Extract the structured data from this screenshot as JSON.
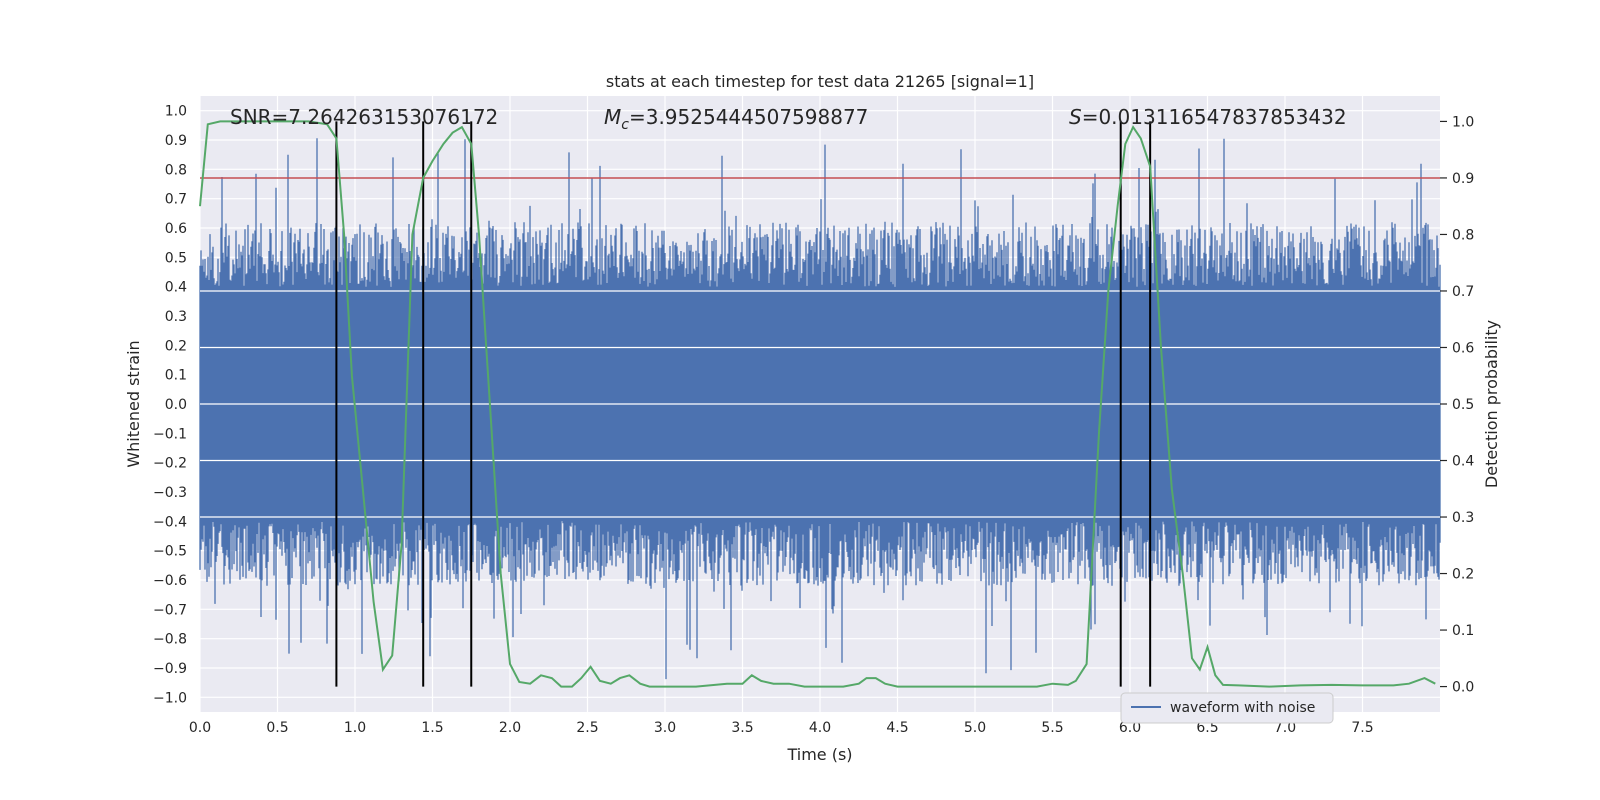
{
  "chart_data": {
    "type": "line",
    "title": "stats at each timestep for test data 21265 [signal=1]",
    "xlabel": "Time (s)",
    "ylabel": "Whitened strain",
    "y2label": "Detection probability",
    "xlim": [
      0.0,
      8.0
    ],
    "ylim": [
      -1.05,
      1.05
    ],
    "y2lim": [
      -0.045,
      1.045
    ],
    "x_ticks": [
      "0.0",
      "0.5",
      "1.0",
      "1.5",
      "2.0",
      "2.5",
      "3.0",
      "3.5",
      "4.0",
      "4.5",
      "5.0",
      "5.5",
      "6.0",
      "6.5",
      "7.0",
      "7.5"
    ],
    "y_ticks": [
      "1.0",
      "0.9",
      "0.8",
      "0.7",
      "0.6",
      "0.5",
      "0.4",
      "0.3",
      "0.2",
      "0.1",
      "0.0",
      "−0.1",
      "−0.2",
      "−0.3",
      "−0.4",
      "−0.5",
      "−0.6",
      "−0.7",
      "−0.8",
      "−0.9",
      "−1.0"
    ],
    "y2_ticks": [
      "1.0",
      "0.9",
      "0.8",
      "0.7",
      "0.6",
      "0.5",
      "0.4",
      "0.3",
      "0.2",
      "0.1",
      "0.0"
    ],
    "annotations": {
      "snr": "SNR=7.264263153076172",
      "mc_symbol": "M",
      "mc_sub": "c",
      "mc_value": "=3.9525444507598877",
      "s_symbol": "S",
      "s_value": "=0.013116547837853432"
    },
    "threshold": {
      "y2": 0.9,
      "color": "#c44e52"
    },
    "vertical_lines_x": [
      0.88,
      1.44,
      1.75,
      5.94,
      6.13
    ],
    "legend": {
      "label": "waveform with noise",
      "placement": "lower-right"
    },
    "series": [
      {
        "name": "waveform with noise",
        "axis": "left",
        "color": "#4c72b0",
        "band_core": 0.4,
        "band_typical": 0.62,
        "peak_max": 0.97,
        "trough_min": -0.95
      },
      {
        "axis": "right",
        "color": "#55a868",
        "x": [
          0.0,
          0.05,
          0.13,
          0.3,
          0.5,
          0.7,
          0.82,
          0.88,
          0.93,
          0.98,
          1.05,
          1.12,
          1.18,
          1.24,
          1.3,
          1.37,
          1.44,
          1.5,
          1.57,
          1.63,
          1.69,
          1.75,
          1.8,
          1.87,
          1.94,
          2.0,
          2.06,
          2.13,
          2.2,
          2.27,
          2.33,
          2.4,
          2.46,
          2.52,
          2.58,
          2.65,
          2.71,
          2.77,
          2.84,
          2.9,
          3.0,
          3.2,
          3.4,
          3.5,
          3.56,
          3.62,
          3.7,
          3.8,
          3.9,
          4.0,
          4.15,
          4.25,
          4.3,
          4.36,
          4.42,
          4.5,
          4.6,
          4.8,
          5.0,
          5.2,
          5.4,
          5.5,
          5.6,
          5.65,
          5.72,
          5.8,
          5.86,
          5.92,
          5.97,
          6.02,
          6.07,
          6.13,
          6.2,
          6.27,
          6.34,
          6.4,
          6.45,
          6.5,
          6.55,
          6.6,
          6.7,
          6.9,
          7.1,
          7.3,
          7.5,
          7.7,
          7.8,
          7.9,
          7.97
        ],
        "values": [
          0.85,
          0.995,
          1.0,
          1.0,
          1.0,
          1.0,
          0.995,
          0.97,
          0.8,
          0.55,
          0.35,
          0.15,
          0.03,
          0.055,
          0.25,
          0.8,
          0.9,
          0.93,
          0.96,
          0.98,
          0.99,
          0.96,
          0.8,
          0.5,
          0.2,
          0.04,
          0.008,
          0.005,
          0.02,
          0.015,
          0.0,
          0.0,
          0.015,
          0.035,
          0.01,
          0.005,
          0.015,
          0.02,
          0.005,
          0.0,
          0.0,
          0.0,
          0.005,
          0.005,
          0.02,
          0.01,
          0.005,
          0.005,
          0.0,
          0.0,
          0.0,
          0.005,
          0.015,
          0.015,
          0.005,
          0.0,
          0.0,
          0.0,
          0.0,
          0.0,
          0.0,
          0.005,
          0.003,
          0.01,
          0.04,
          0.45,
          0.7,
          0.85,
          0.96,
          0.99,
          0.97,
          0.92,
          0.6,
          0.35,
          0.2,
          0.05,
          0.03,
          0.07,
          0.02,
          0.003,
          0.002,
          0.0,
          0.002,
          0.003,
          0.002,
          0.002,
          0.005,
          0.015,
          0.005
        ]
      }
    ]
  }
}
